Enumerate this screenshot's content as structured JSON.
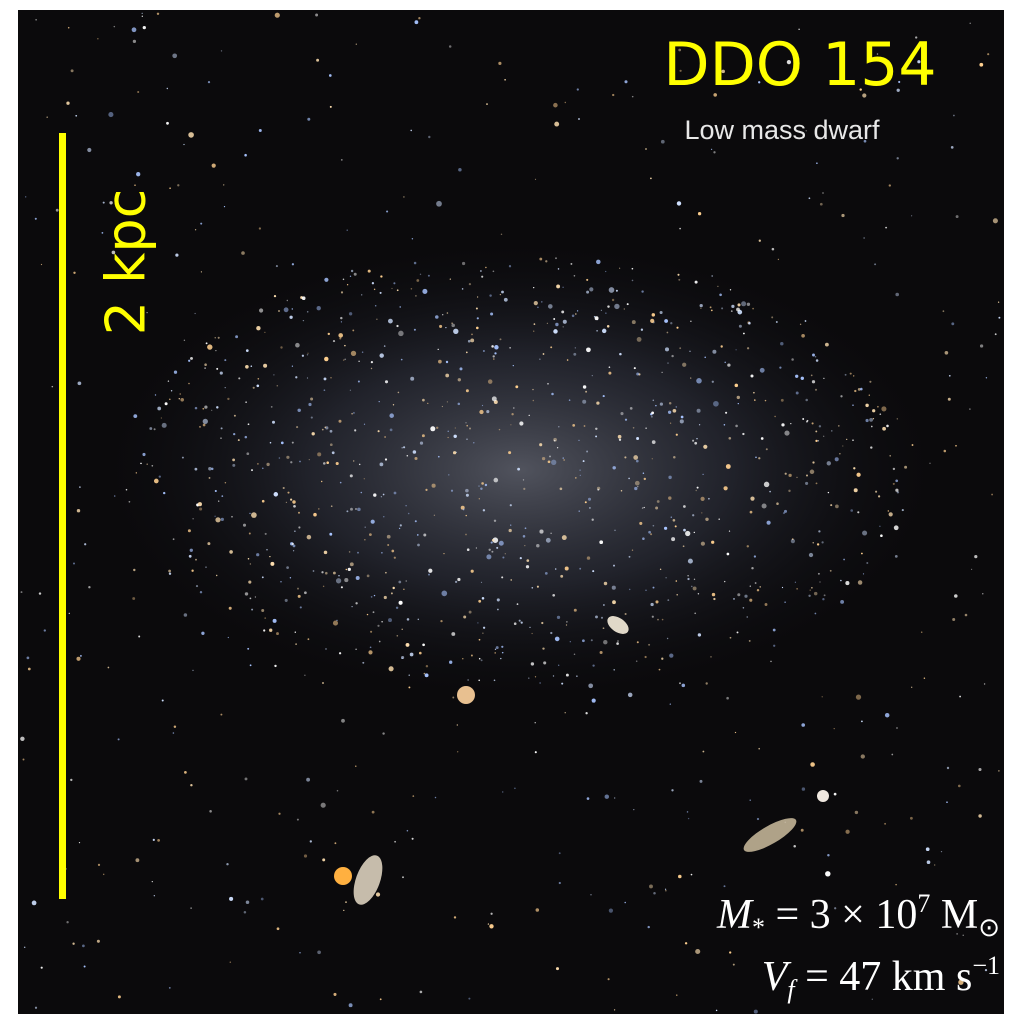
{
  "title": "DDO 154",
  "subtitle": "Low mass dwarf",
  "scale_bar": {
    "label": "2 kpc"
  },
  "annotations": {
    "mass": {
      "symbol": "M",
      "symbol_subscript": "*",
      "relation": " = 3 × 10",
      "exponent": "7",
      "unit": " M",
      "unit_subscript": "⊙"
    },
    "velocity": {
      "symbol": "V",
      "symbol_subscript": "f",
      "relation": " = 47 km s",
      "exponent": "−1"
    }
  }
}
